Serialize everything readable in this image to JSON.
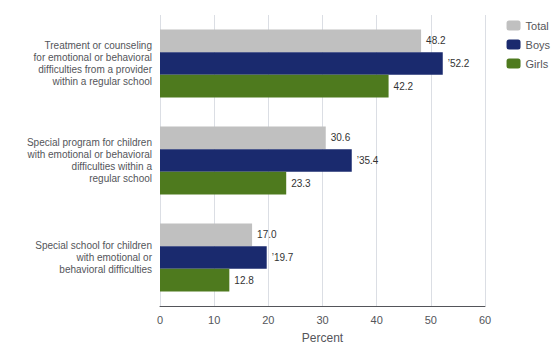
{
  "chart_data": {
    "type": "bar",
    "orientation": "horizontal",
    "categories": [
      "Treatment or counseling\nfor emotional or behavioral\ndifficulties from a provider\nwithin a regular school",
      "Special program for children\nwith emotional or behavioral\ndifficulties within a\nregular school",
      "Special school for children\nwith emotional or\nbehavioral difficulties"
    ],
    "series": [
      {
        "name": "Total",
        "color": "#c0c0c0",
        "values": [
          48.2,
          30.6,
          17.0
        ],
        "value_labels": [
          "48.2",
          "30.6",
          "17.0"
        ]
      },
      {
        "name": "Boys",
        "color": "#1a2a6e",
        "values": [
          52.2,
          35.4,
          19.7
        ],
        "value_labels": [
          "’52.2",
          "’35.4",
          "’19.7"
        ]
      },
      {
        "name": "Girls",
        "color": "#4e7a1e",
        "values": [
          42.2,
          23.3,
          12.8
        ],
        "value_labels": [
          "42.2",
          "23.3",
          "12.8"
        ]
      }
    ],
    "xlabel": "Percent",
    "xlim": [
      0,
      60
    ],
    "xticks": [
      0,
      10,
      20,
      30,
      40,
      50,
      60
    ],
    "grid": true,
    "legend": "upper right",
    "data_labels": true
  }
}
